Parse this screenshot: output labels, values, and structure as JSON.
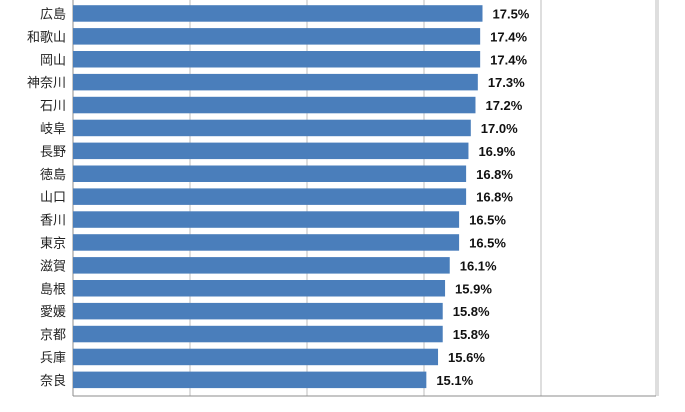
{
  "chart_data": {
    "type": "bar",
    "orientation": "horizontal",
    "categories": [
      "広島",
      "和歌山",
      "岡山",
      "神奈川",
      "石川",
      "岐阜",
      "長野",
      "徳島",
      "山口",
      "香川",
      "東京",
      "滋賀",
      "島根",
      "愛媛",
      "京都",
      "兵庫",
      "奈良"
    ],
    "values": [
      17.5,
      17.4,
      17.4,
      17.3,
      17.2,
      17.0,
      16.9,
      16.8,
      16.8,
      16.5,
      16.5,
      16.1,
      15.9,
      15.8,
      15.8,
      15.6,
      15.1
    ],
    "value_labels": [
      "17.5%",
      "17.4%",
      "17.4%",
      "17.3%",
      "17.2%",
      "17.0%",
      "16.9%",
      "16.8%",
      "16.8%",
      "16.5%",
      "16.5%",
      "16.1%",
      "15.9%",
      "15.8%",
      "15.8%",
      "15.6%",
      "15.1%"
    ],
    "xlim": [
      0,
      25
    ],
    "grid": true,
    "bar_color": "#4a7ebb",
    "title": "",
    "xlabel": "",
    "ylabel": ""
  }
}
